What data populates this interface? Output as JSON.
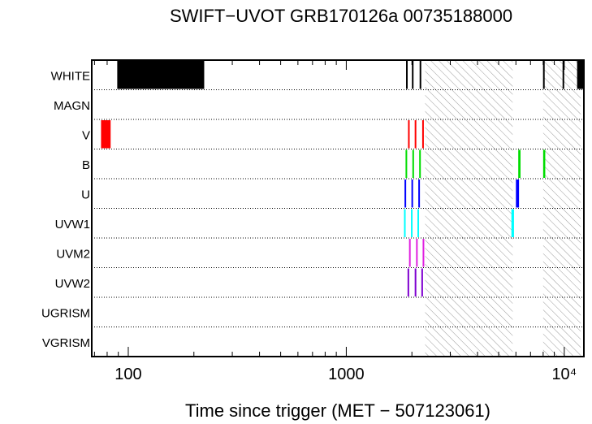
{
  "chart_data": {
    "type": "timeline",
    "title": "SWIFT−UVOT GRB170126a 00735188000",
    "xlabel": "Time since trigger (MET − 507123061)",
    "x_scale": "log",
    "xlim": [
      68,
      12300
    ],
    "x_ticks": [
      {
        "value": 100,
        "label": "100"
      },
      {
        "value": 1000,
        "label": "1000"
      },
      {
        "value": 10000,
        "label": "10⁴"
      }
    ],
    "rows": [
      "WHITE",
      "MAGN",
      "V",
      "B",
      "U",
      "UVW1",
      "UVM2",
      "UVW2",
      "UGRISM",
      "VGRISM"
    ],
    "gaps": [
      [
        2300,
        5800
      ],
      [
        8000,
        11900
      ]
    ],
    "exposures": [
      {
        "filter": "WHITE",
        "color": "#000000",
        "segments": [
          [
            89,
            223
          ],
          [
            1880,
            1895
          ],
          [
            2000,
            2015
          ],
          [
            2170,
            2185
          ],
          [
            7990,
            8005
          ],
          [
            9820,
            9835
          ],
          [
            11450,
            12300
          ]
        ]
      },
      {
        "filter": "V",
        "color": "#ff0000",
        "segments": [
          [
            75,
            83
          ],
          [
            1920,
            1945
          ],
          [
            2060,
            2085
          ],
          [
            2230,
            2255
          ]
        ]
      },
      {
        "filter": "B",
        "color": "#00dd00",
        "segments": [
          [
            1870,
            1895
          ],
          [
            2010,
            2035
          ],
          [
            2160,
            2185
          ],
          [
            6150,
            6300
          ],
          [
            8000,
            8180
          ]
        ]
      },
      {
        "filter": "U",
        "color": "#0000ff",
        "segments": [
          [
            1850,
            1875
          ],
          [
            1990,
            2015
          ],
          [
            2140,
            2165
          ],
          [
            6000,
            6200
          ]
        ]
      },
      {
        "filter": "UVW1",
        "color": "#00ffff",
        "segments": [
          [
            1840,
            1865
          ],
          [
            1980,
            2005
          ],
          [
            2120,
            2145
          ],
          [
            5720,
            5880
          ]
        ]
      },
      {
        "filter": "UVM2",
        "color": "#e020e0",
        "segments": [
          [
            1940,
            1965
          ],
          [
            2090,
            2115
          ],
          [
            2240,
            2265
          ]
        ]
      },
      {
        "filter": "UVW2",
        "color": "#7f00d0",
        "segments": [
          [
            1910,
            1935
          ],
          [
            2060,
            2085
          ],
          [
            2210,
            2235
          ]
        ]
      }
    ]
  }
}
